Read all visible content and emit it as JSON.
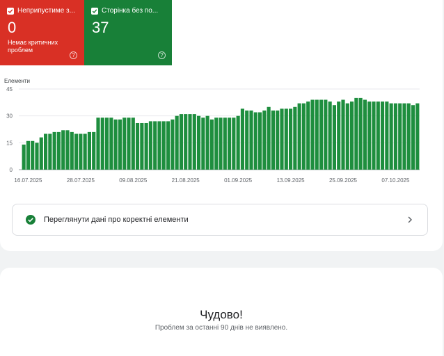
{
  "tiles": {
    "error": {
      "label": "Неприпустиме з...",
      "value": "0",
      "subtitle": "Немає критичних проблем",
      "color": "#d93025",
      "icon": "check-box-icon",
      "help_icon": "?"
    },
    "valid": {
      "label": "Сторінка без по...",
      "value": "37",
      "color": "#188038",
      "icon": "check-box-icon",
      "help_icon": "?"
    }
  },
  "chart": {
    "y_title": "Елементи",
    "y_ticks": [
      "45",
      "30",
      "15",
      "0"
    ],
    "x_ticks": [
      "16.07.2025",
      "28.07.2025",
      "09.08.2025",
      "21.08.2025",
      "01.09.2025",
      "13.09.2025",
      "25.09.2025",
      "07.10.2025"
    ],
    "bar_color": "#1e8e3e"
  },
  "chart_data": {
    "type": "bar",
    "xlabel": "",
    "ylabel": "Елементи",
    "ylim": [
      0,
      45
    ],
    "grid": true,
    "x_first": "16.07.2025",
    "values": [
      14,
      16,
      16,
      15,
      18,
      20,
      20,
      21,
      21,
      22,
      22,
      21,
      20,
      20,
      20,
      21,
      21,
      29,
      29,
      29,
      29,
      28,
      28,
      29,
      29,
      29,
      26,
      26,
      26,
      27,
      27,
      27,
      27,
      27,
      28,
      30,
      31,
      31,
      31,
      31,
      30,
      29,
      30,
      28,
      29,
      29,
      29,
      29,
      29,
      30,
      34,
      33,
      33,
      32,
      32,
      33,
      35,
      33,
      33,
      34,
      34,
      34,
      35,
      37,
      37,
      38,
      39,
      39,
      39,
      39,
      38,
      36,
      38,
      39,
      37,
      38,
      40,
      40,
      39,
      38,
      38,
      38,
      38,
      38,
      37,
      37,
      37,
      37,
      37,
      36,
      37
    ]
  },
  "detail_row": {
    "icon": "check-circle-icon",
    "label": "Переглянути дані про коректні елементи",
    "chevron": "chevron-right-icon"
  },
  "empty_state": {
    "title": "Чудово!",
    "subtitle": "Проблем за останні 90 днів не виявлено."
  }
}
